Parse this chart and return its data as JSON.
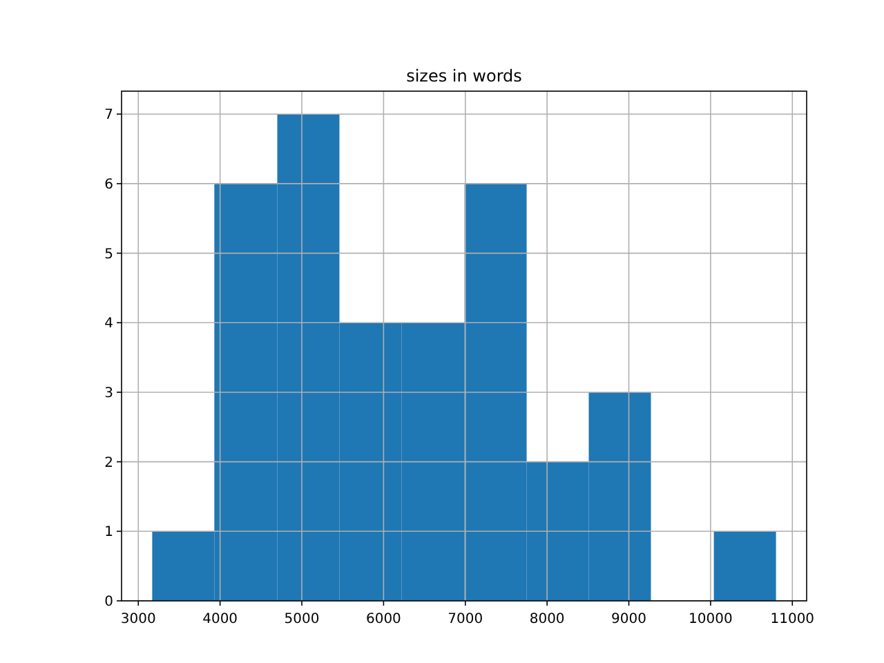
{
  "chart_data": {
    "type": "histogram",
    "title": "sizes in words",
    "bins": [
      3170,
      3930,
      4700,
      5460,
      6220,
      6990,
      7750,
      8510,
      9270,
      10040,
      10800
    ],
    "values": [
      1,
      6,
      7,
      4,
      4,
      6,
      2,
      3,
      0,
      1
    ],
    "color": "#1f77b4",
    "xlim": [
      2795,
      11175
    ],
    "ylim": [
      0,
      7.33
    ],
    "xticks": [
      3000,
      4000,
      5000,
      6000,
      7000,
      8000,
      9000,
      10000,
      11000
    ],
    "yticks": [
      0,
      1,
      2,
      3,
      4,
      5,
      6,
      7
    ],
    "grid": true
  }
}
